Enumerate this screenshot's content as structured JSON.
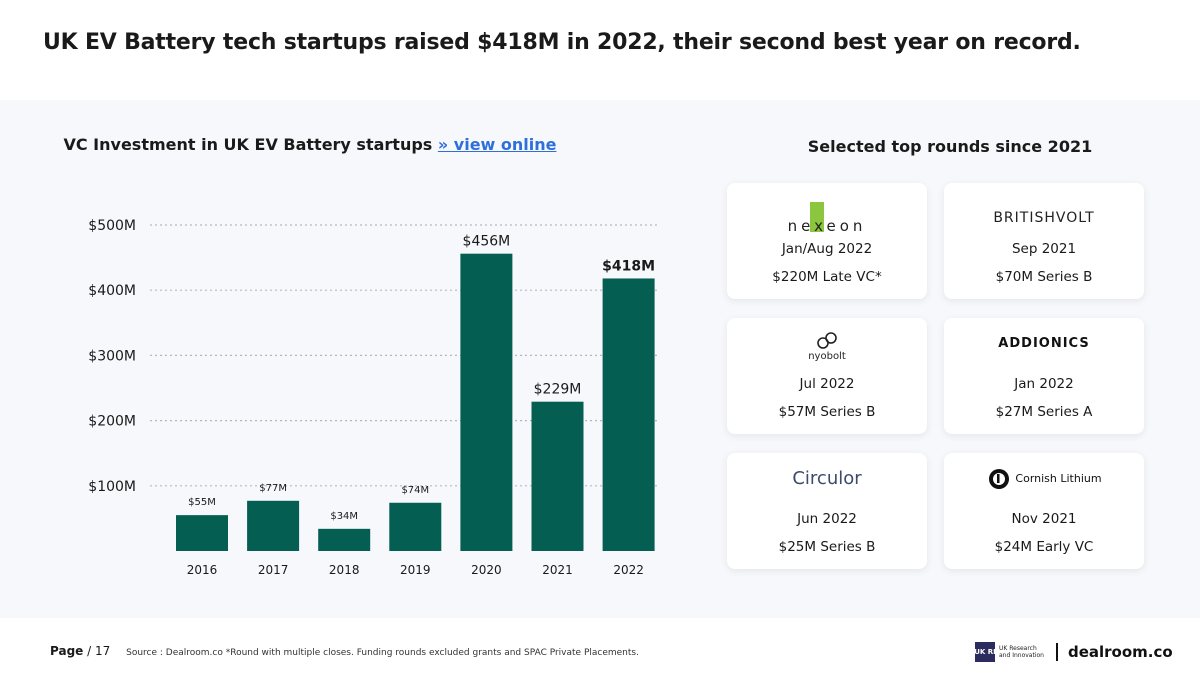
{
  "title": "UK EV Battery tech startups raised $418M in 2022, their second best year on record.",
  "chart_heading": {
    "text": "VC Investment in UK EV Battery startups ",
    "link": "» view online"
  },
  "chart_data": {
    "type": "bar",
    "categories": [
      "2016",
      "2017",
      "2018",
      "2019",
      "2020",
      "2021",
      "2022"
    ],
    "values": [
      55,
      77,
      34,
      74,
      456,
      229,
      418
    ],
    "value_labels": [
      "$55M",
      "$77M",
      "$34M",
      "$74M",
      "$456M",
      "$229M",
      "$418M"
    ],
    "y_ticks": [
      100,
      200,
      300,
      400,
      500
    ],
    "y_tick_labels": [
      "$100M",
      "$200M",
      "$300M",
      "$400M",
      "$500M"
    ],
    "ylim": [
      0,
      500
    ],
    "grid": "horizontal dotted",
    "bar_color": "#045e52"
  },
  "rounds_title": "Selected top rounds since 2021",
  "rounds": [
    {
      "company": "nexeon",
      "date": "Jan/Aug 2022",
      "round": "$220M Late VC*"
    },
    {
      "company": "BRITISHVOLT",
      "date": "Sep 2021",
      "round": "$70M Series B"
    },
    {
      "company": "nyobolt",
      "date": "Jul 2022",
      "round": "$57M Series B"
    },
    {
      "company": "ADDIONICS",
      "date": "Jan 2022",
      "round": "$27M Series A"
    },
    {
      "company": "Circulor",
      "date": "Jun 2022",
      "round": "$25M Series B"
    },
    {
      "company": "Cornish Lithium",
      "date": "Nov 2021",
      "round": "$24M Early VC"
    }
  ],
  "footer": {
    "page_label": "Page",
    "page_num": "/ 17",
    "source": "Source : Dealroom.co *Round with multiple closes. Funding rounds excluded grants and SPAC Private Placements."
  },
  "brand": {
    "ukri_box": "UK RI",
    "ukri_text_1": "UK Research",
    "ukri_text_2": "and Innovation",
    "dealroom": "dealroom.co"
  }
}
